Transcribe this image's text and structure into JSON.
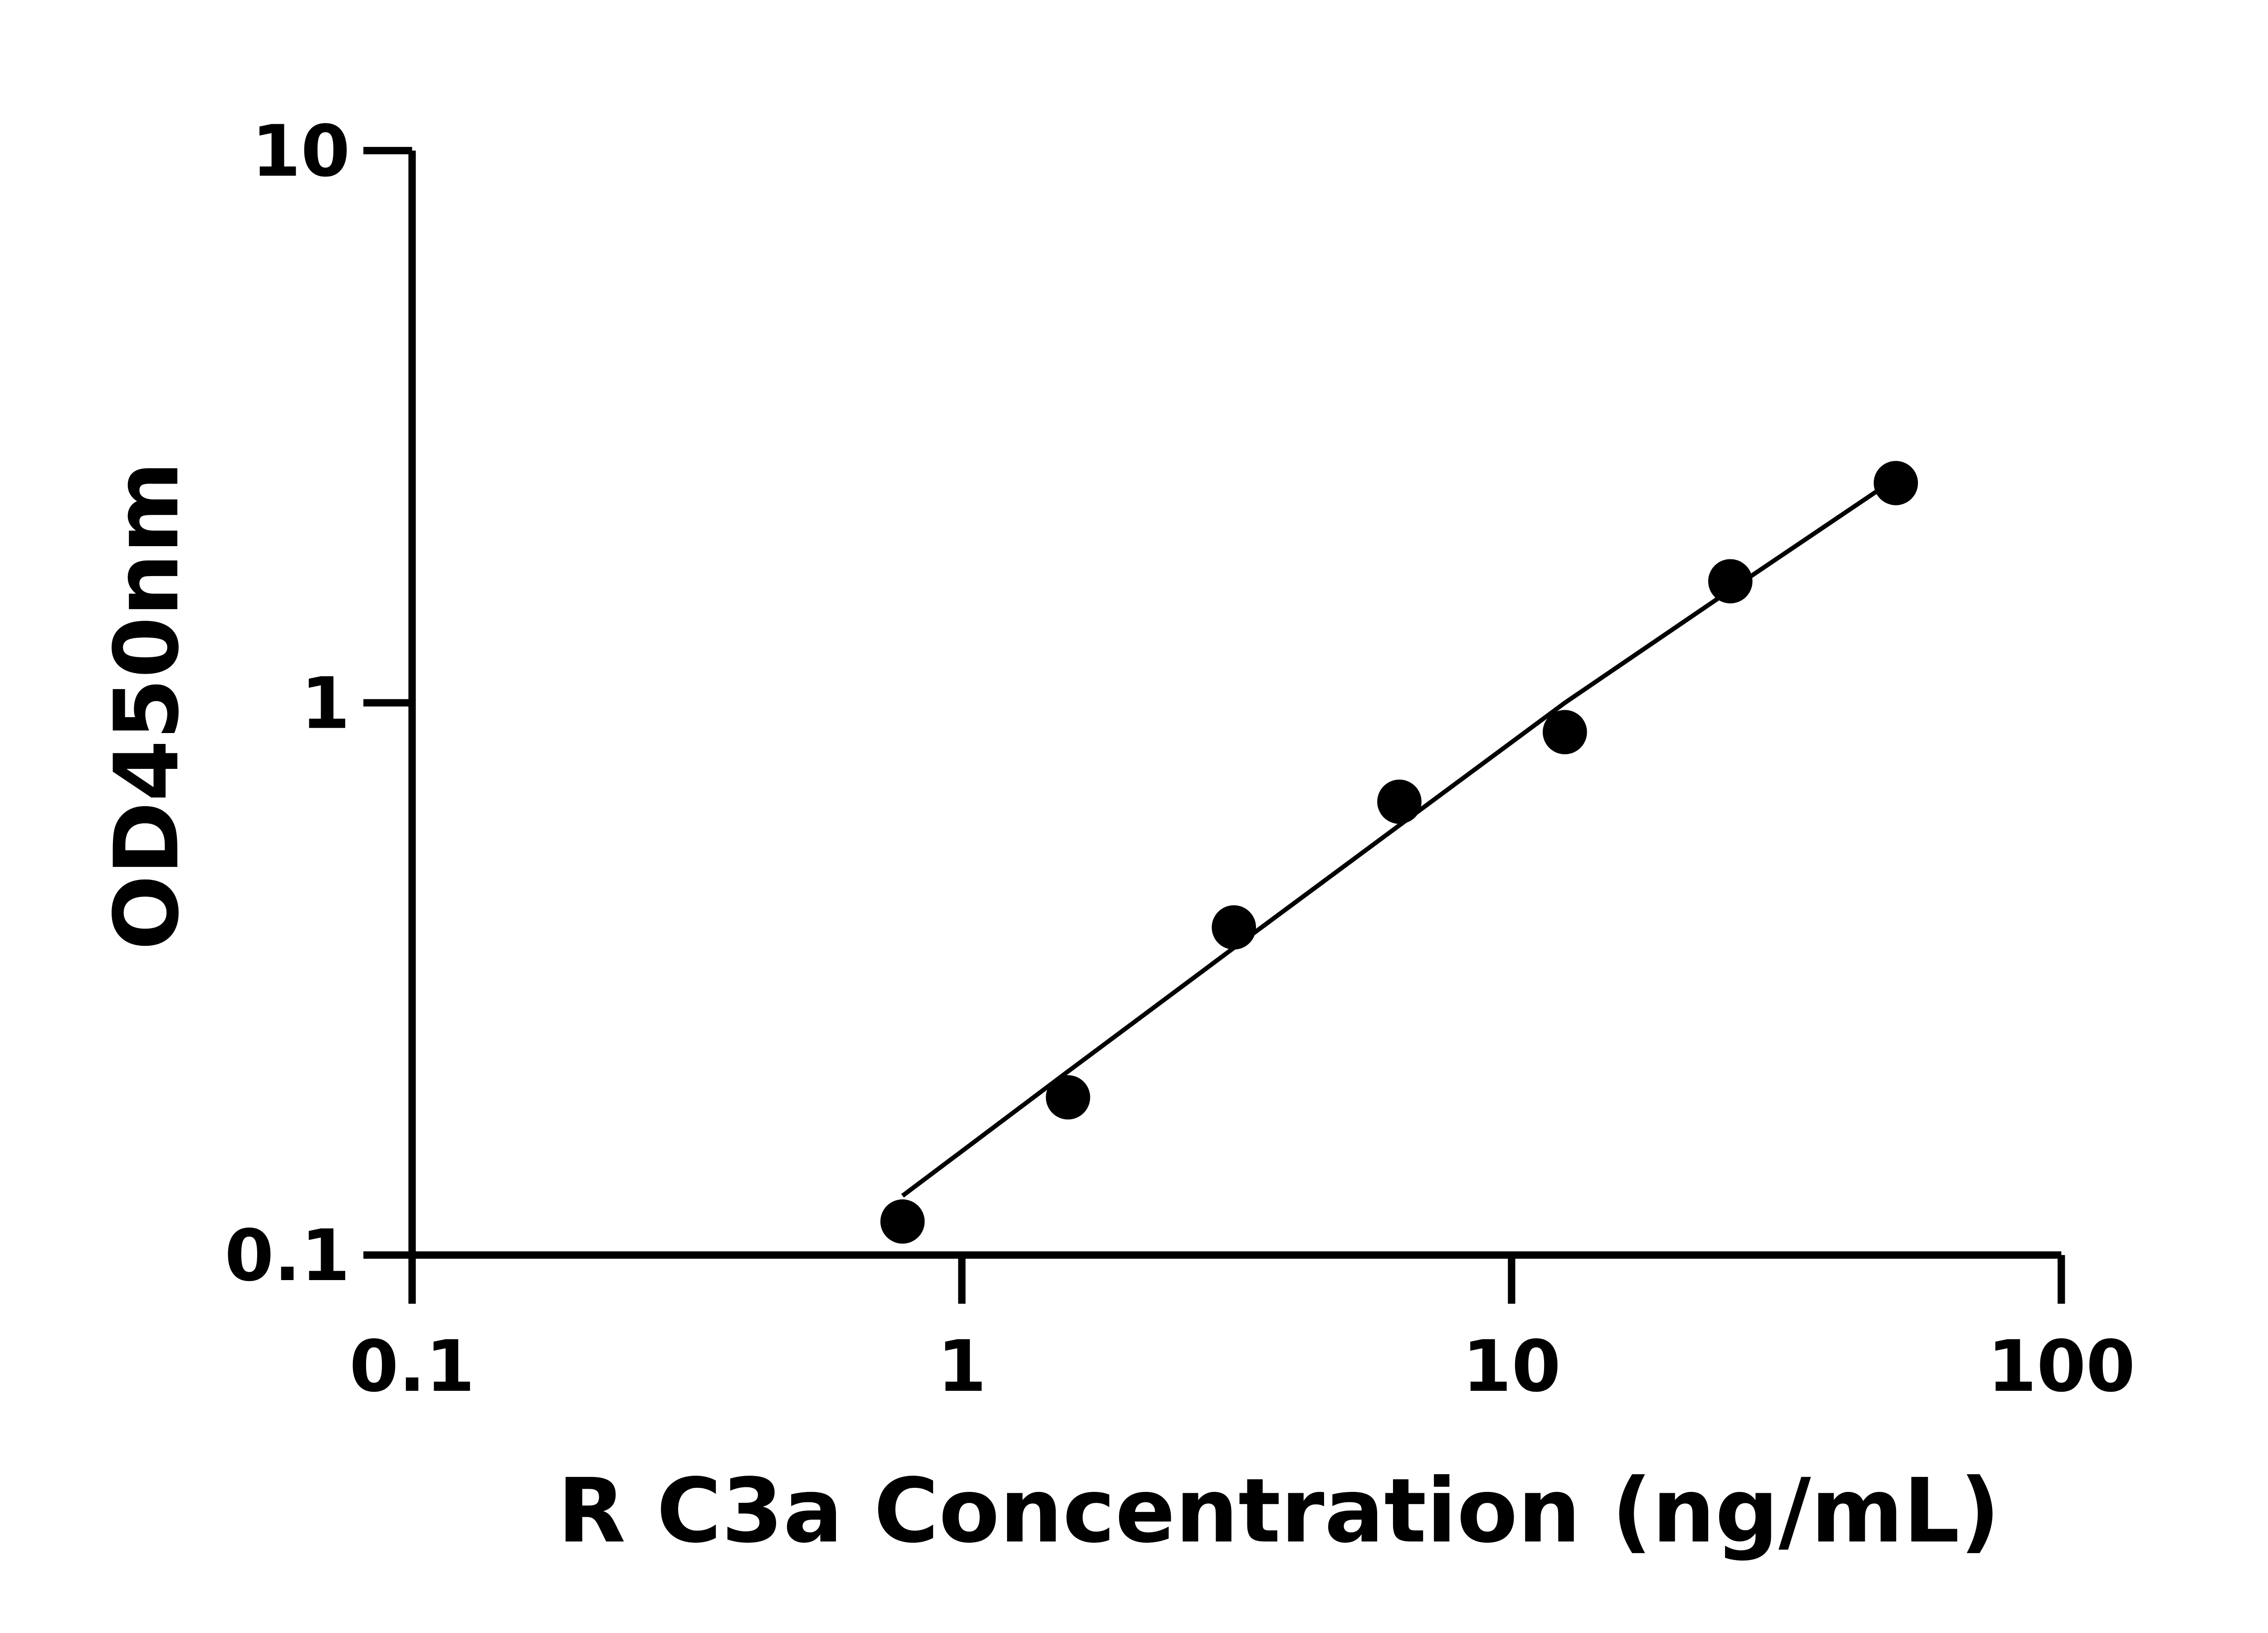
{
  "chart_data": {
    "type": "scatter",
    "title": "",
    "xlabel": "R C3a Concentration (ng/mL)",
    "ylabel": "OD450nm",
    "x_scale": "log",
    "y_scale": "log",
    "xlim": [
      0.1,
      100
    ],
    "ylim": [
      0.1,
      10
    ],
    "x_ticks": [
      "0.1",
      "1",
      "10",
      "100"
    ],
    "y_ticks": [
      "0.1",
      "1",
      "10"
    ],
    "grid": false,
    "points": {
      "x": [
        0.78,
        1.56,
        3.125,
        6.25,
        12.5,
        25,
        50
      ],
      "y": [
        0.115,
        0.193,
        0.392,
        0.662,
        0.885,
        1.66,
        2.5
      ]
    },
    "fit_line": {
      "x": [
        0.78,
        1.56,
        3.125,
        6.25,
        12.5,
        25,
        46
      ],
      "y": [
        0.128,
        0.215,
        0.36,
        0.6,
        1.0,
        1.6,
        2.41
      ]
    },
    "marker_color": "#000000",
    "line_color": "#000000"
  }
}
